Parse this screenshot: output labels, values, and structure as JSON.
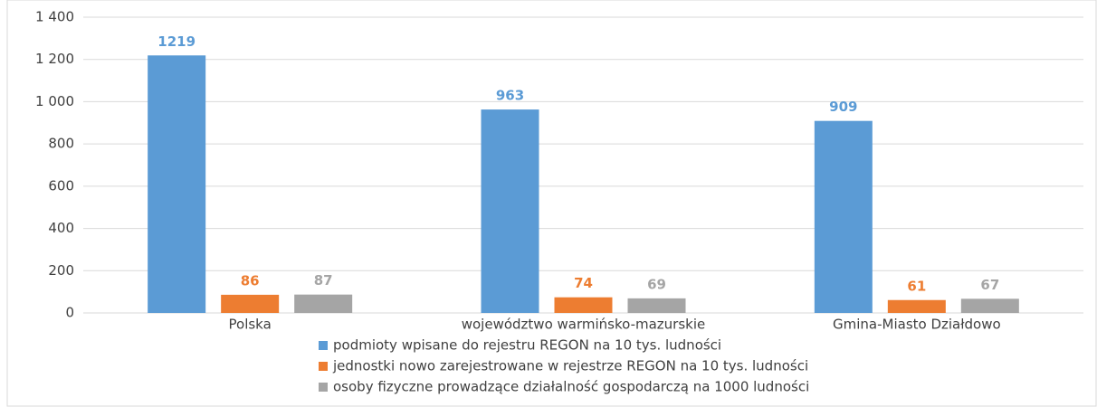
{
  "chart_data": {
    "type": "bar",
    "categories": [
      "Polska",
      "województwo warmińsko-mazurskie",
      "Gmina-Miasto Działdowo"
    ],
    "series": [
      {
        "name": "podmioty wpisane do rejestru REGON na 10 tys. ludności",
        "color": "#5b9bd5",
        "values": [
          1219,
          963,
          909
        ]
      },
      {
        "name": "jednostki nowo zarejestrowane w rejestrze REGON na 10 tys. ludności",
        "color": "#ed7d31",
        "values": [
          86,
          74,
          61
        ]
      },
      {
        "name": "osoby fizyczne prowadzące działalność gospodarczą na 1000 ludności",
        "color": "#a5a5a5",
        "values": [
          87,
          69,
          67
        ]
      }
    ],
    "ylim": [
      0,
      1400
    ],
    "yticks": [
      0,
      200,
      400,
      600,
      800,
      {
        "value": 1000,
        "label": "1 000"
      },
      {
        "value": 1200,
        "label": "1 200"
      },
      {
        "value": 1400,
        "label": "1 400"
      }
    ],
    "grid": true,
    "legend": "bottom",
    "data_labels": true
  }
}
